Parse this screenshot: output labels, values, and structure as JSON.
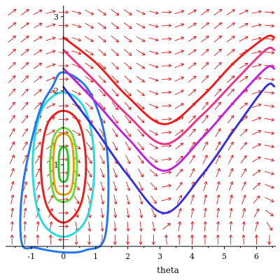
{
  "chart_data": {
    "type": "line",
    "title": "",
    "xlabel": "theta",
    "ylabel": "",
    "xlim": [
      -1.8,
      6.6
    ],
    "ylim": [
      -0.1,
      3.15
    ],
    "x_ticks": [
      {
        "value": -1,
        "label": "-1"
      },
      {
        "value": 0,
        "label": "0"
      },
      {
        "value": 1,
        "label": "1"
      },
      {
        "value": 2,
        "label": "2"
      },
      {
        "value": 3,
        "label": "3"
      },
      {
        "value": 4,
        "label": "4"
      },
      {
        "value": 5,
        "label": "5"
      },
      {
        "value": 6,
        "label": "6"
      }
    ],
    "y_ticks": [
      {
        "value": 1,
        "label": "1"
      },
      {
        "value": 2,
        "label": "2"
      },
      {
        "value": 3,
        "label": "3"
      }
    ],
    "field_color": "#e00000",
    "vector_field": {
      "dx": "y",
      "dy": "-sin(theta)"
    },
    "series": [
      {
        "kind": "closed",
        "color": "#22cc22",
        "points": [
          [
            0,
            1.25
          ],
          [
            0.12,
            1.18
          ],
          [
            0.15,
            1.0
          ],
          [
            0.12,
            0.82
          ],
          [
            0,
            0.77
          ],
          [
            -0.12,
            0.82
          ],
          [
            -0.15,
            1.0
          ],
          [
            -0.12,
            1.18
          ],
          [
            0,
            1.25
          ]
        ]
      },
      {
        "kind": "closed",
        "color": "#e0a000",
        "points": [
          [
            0,
            1.42
          ],
          [
            0.24,
            1.33
          ],
          [
            0.32,
            1.0
          ],
          [
            0.24,
            0.67
          ],
          [
            0,
            0.6
          ],
          [
            -0.24,
            0.67
          ],
          [
            -0.32,
            1.0
          ],
          [
            -0.24,
            1.33
          ],
          [
            0,
            1.42
          ]
        ]
      },
      {
        "kind": "closed",
        "color": "#66dd44",
        "points": [
          [
            0,
            1.5
          ],
          [
            0.3,
            1.38
          ],
          [
            0.42,
            1.0
          ],
          [
            0.3,
            0.6
          ],
          [
            0,
            0.5
          ],
          [
            -0.3,
            0.6
          ],
          [
            -0.42,
            1.0
          ],
          [
            -0.3,
            1.38
          ],
          [
            0,
            1.5
          ]
        ]
      },
      {
        "kind": "closed",
        "color": "#ee1c1c",
        "points": [
          [
            0,
            1.73
          ],
          [
            0.5,
            1.55
          ],
          [
            0.7,
            1.0
          ],
          [
            0.52,
            0.45
          ],
          [
            0,
            0.22
          ],
          [
            -0.52,
            0.45
          ],
          [
            -0.7,
            1.0
          ],
          [
            -0.5,
            1.55
          ],
          [
            0,
            1.73
          ]
        ]
      },
      {
        "kind": "closed",
        "color": "#22dddd",
        "points": [
          [
            0,
            1.98
          ],
          [
            0.7,
            1.72
          ],
          [
            0.96,
            1.0
          ],
          [
            0.72,
            0.28
          ],
          [
            0,
            0.03
          ],
          [
            -0.72,
            0.28
          ],
          [
            -0.96,
            1.0
          ],
          [
            -0.7,
            1.72
          ],
          [
            0,
            1.98
          ]
        ]
      },
      {
        "kind": "closed",
        "color": "#2277ee",
        "points": [
          [
            0,
            2.25
          ],
          [
            0.82,
            1.98
          ],
          [
            1.35,
            1.2
          ],
          [
            1.3,
            0.05
          ],
          [
            0.7,
            -0.15
          ],
          [
            0,
            -0.18
          ],
          [
            -0.85,
            -0.12
          ],
          [
            -1.3,
            -0.05
          ],
          [
            -1.27,
            0.7
          ],
          [
            -0.8,
            1.65
          ],
          [
            -0.35,
            2.05
          ],
          [
            0,
            2.25
          ]
        ]
      },
      {
        "kind": "open",
        "color": "#3a2fe0",
        "points": [
          [
            0,
            2.05
          ],
          [
            1,
            1.47
          ],
          [
            2,
            0.86
          ],
          [
            3.14,
            0.35
          ],
          [
            4.3,
            0.86
          ],
          [
            5.3,
            1.47
          ],
          [
            6.28,
            2.05
          ],
          [
            6.55,
            2.06
          ]
        ]
      },
      {
        "kind": "open",
        "color": "#c020e0",
        "points": [
          [
            0,
            2.3
          ],
          [
            1,
            1.85
          ],
          [
            2,
            1.36
          ],
          [
            3.14,
            0.92
          ],
          [
            4.3,
            1.36
          ],
          [
            5.3,
            1.85
          ],
          [
            6.28,
            2.3
          ],
          [
            6.55,
            2.3
          ]
        ]
      },
      {
        "kind": "open",
        "color": "#ee3388",
        "points": [
          [
            0,
            2.55
          ],
          [
            1,
            2.12
          ],
          [
            2,
            1.67
          ],
          [
            3.14,
            1.28
          ],
          [
            4.3,
            1.67
          ],
          [
            5.3,
            2.12
          ],
          [
            6.28,
            2.55
          ],
          [
            6.55,
            2.55
          ]
        ]
      },
      {
        "kind": "open",
        "color": "#ee1c1c",
        "points": [
          [
            0,
            2.72
          ],
          [
            1,
            2.38
          ],
          [
            2,
            1.92
          ],
          [
            3.14,
            1.55
          ],
          [
            4.3,
            1.92
          ],
          [
            5.3,
            2.38
          ],
          [
            6.28,
            2.72
          ],
          [
            6.55,
            2.72
          ]
        ]
      }
    ]
  }
}
